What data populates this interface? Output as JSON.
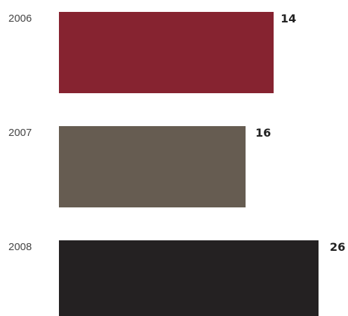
{
  "chart_data": {
    "type": "bar",
    "orientation": "horizontal",
    "title": "",
    "xlabel": "",
    "ylabel": "",
    "categories": [
      "2006",
      "2007",
      "2008"
    ],
    "series": [
      {
        "values": [
          14,
          16,
          26
        ],
        "colors": [
          "#862330",
          "#665C51",
          "#242122"
        ]
      }
    ],
    "grid": false,
    "legend": "none"
  }
}
